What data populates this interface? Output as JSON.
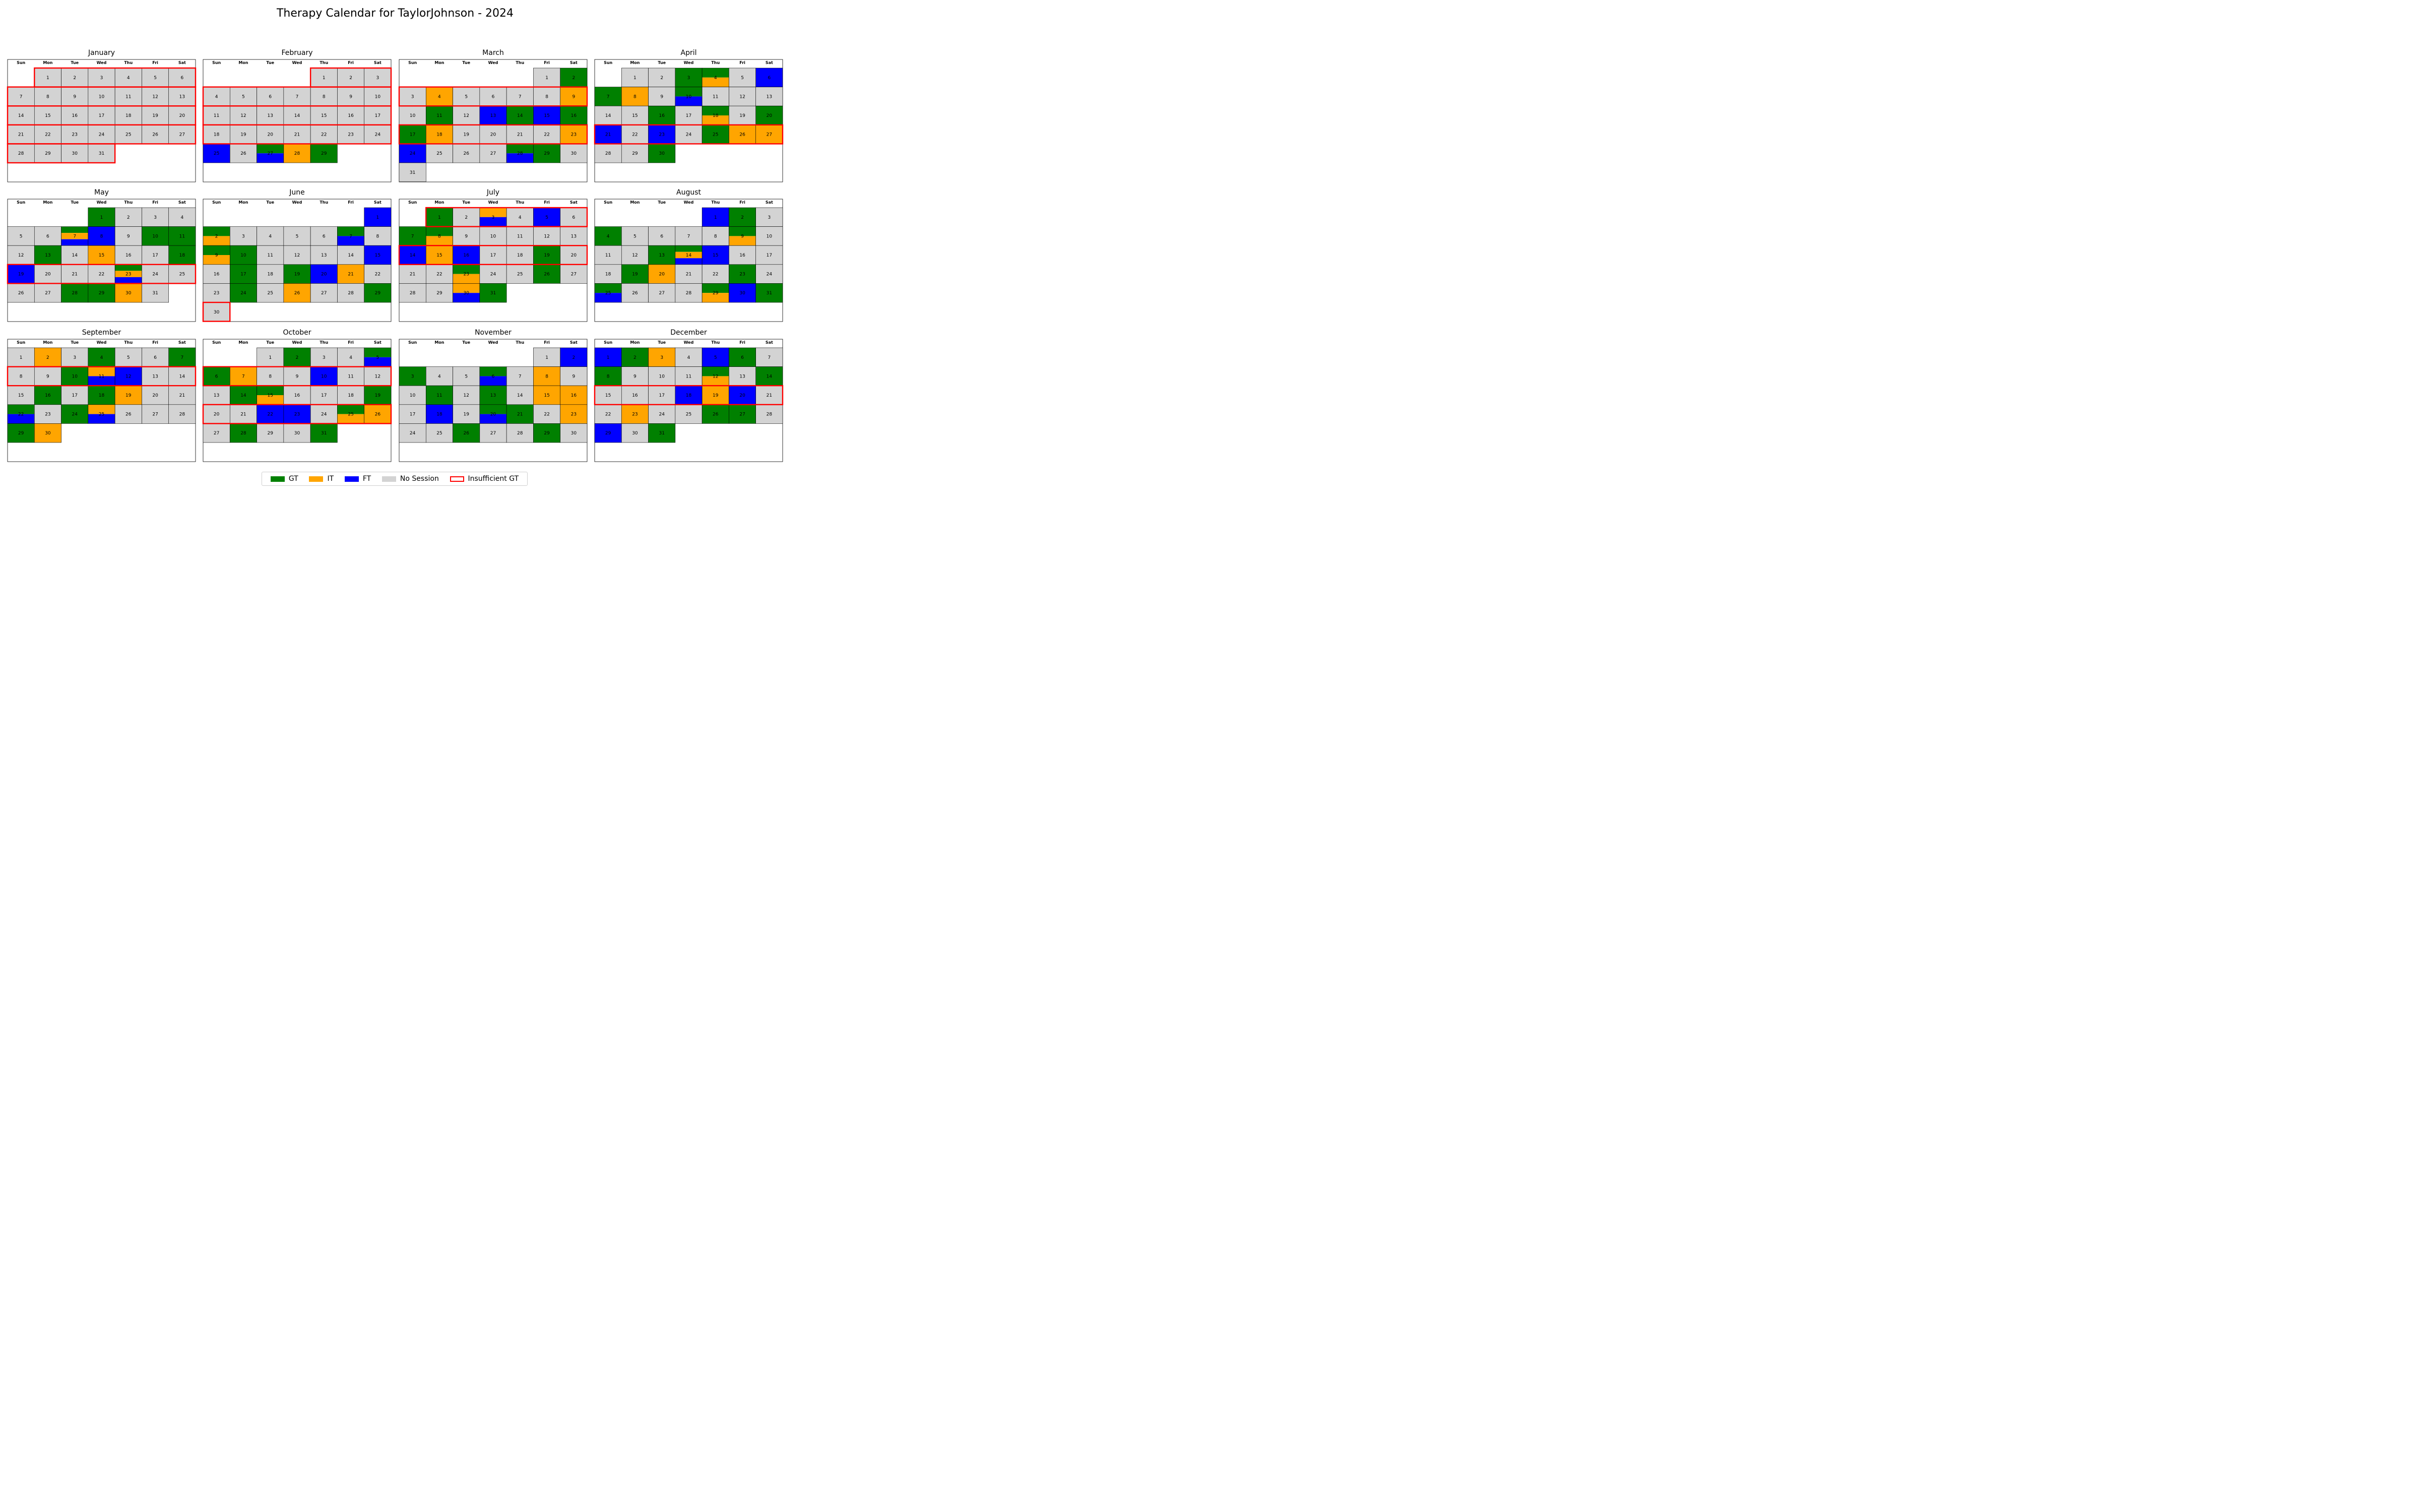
{
  "title": "Therapy Calendar for TaylorJohnson - 2024",
  "weekday_labels": [
    "Sun",
    "Mon",
    "Tue",
    "Wed",
    "Thu",
    "Fri",
    "Sat"
  ],
  "colors": {
    "GT": "#008000",
    "IT": "#FFA500",
    "FT": "#0000FF",
    "none": "#D3D3D3",
    "insufficient": "#FF0000"
  },
  "legend": [
    {
      "key": "GT",
      "label": "GT"
    },
    {
      "key": "IT",
      "label": "IT"
    },
    {
      "key": "FT",
      "label": "FT"
    },
    {
      "key": "none",
      "label": "No Session"
    },
    {
      "key": "insufficient",
      "label": "Insufficient GT"
    }
  ],
  "chart_data": {
    "type": "heatmap",
    "year": 2024,
    "months": [
      {
        "name": "January",
        "first_weekday": 1,
        "days": 31,
        "sessions": {},
        "insufficient_weeks": [
          0,
          1,
          2,
          3,
          4
        ]
      },
      {
        "name": "February",
        "first_weekday": 4,
        "days": 29,
        "sessions": {
          "25": [
            "FT"
          ],
          "27": [
            "GT",
            "FT"
          ],
          "28": [
            "IT"
          ],
          "29": [
            "GT"
          ]
        },
        "insufficient_weeks": [
          0,
          1,
          2,
          3
        ]
      },
      {
        "name": "March",
        "first_weekday": 5,
        "days": 31,
        "sessions": {
          "2": [
            "GT"
          ],
          "4": [
            "IT"
          ],
          "9": [
            "IT"
          ],
          "11": [
            "GT"
          ],
          "13": [
            "FT"
          ],
          "14": [
            "GT"
          ],
          "15": [
            "FT"
          ],
          "16": [
            "GT"
          ],
          "17": [
            "GT"
          ],
          "18": [
            "IT"
          ],
          "23": [
            "IT"
          ],
          "24": [
            "FT"
          ],
          "28": [
            "GT",
            "FT"
          ],
          "29": [
            "GT"
          ]
        },
        "insufficient_weeks": [
          1,
          3
        ]
      },
      {
        "name": "April",
        "first_weekday": 1,
        "days": 30,
        "sessions": {
          "3": [
            "GT"
          ],
          "4": [
            "GT",
            "IT"
          ],
          "6": [
            "FT"
          ],
          "7": [
            "GT"
          ],
          "8": [
            "IT"
          ],
          "10": [
            "GT",
            "FT"
          ],
          "16": [
            "GT"
          ],
          "18": [
            "GT",
            "IT"
          ],
          "20": [
            "GT"
          ],
          "21": [
            "FT"
          ],
          "23": [
            "FT"
          ],
          "25": [
            "GT"
          ],
          "26": [
            "IT"
          ],
          "27": [
            "IT"
          ],
          "30": [
            "GT"
          ]
        },
        "insufficient_weeks": [
          3
        ]
      },
      {
        "name": "May",
        "first_weekday": 3,
        "days": 31,
        "sessions": {
          "1": [
            "GT"
          ],
          "7": [
            "GT",
            "IT",
            "FT"
          ],
          "8": [
            "FT"
          ],
          "10": [
            "GT"
          ],
          "11": [
            "GT"
          ],
          "13": [
            "GT"
          ],
          "15": [
            "IT"
          ],
          "18": [
            "GT"
          ],
          "19": [
            "FT"
          ],
          "23": [
            "GT",
            "IT",
            "FT"
          ],
          "28": [
            "GT"
          ],
          "29": [
            "GT"
          ],
          "30": [
            "IT"
          ]
        },
        "insufficient_weeks": [
          3
        ]
      },
      {
        "name": "June",
        "first_weekday": 6,
        "days": 30,
        "sessions": {
          "1": [
            "FT"
          ],
          "2": [
            "GT",
            "IT"
          ],
          "7": [
            "GT",
            "FT"
          ],
          "9": [
            "GT",
            "IT"
          ],
          "10": [
            "GT"
          ],
          "15": [
            "FT"
          ],
          "17": [
            "GT"
          ],
          "19": [
            "GT"
          ],
          "20": [
            "FT"
          ],
          "21": [
            "IT"
          ],
          "24": [
            "GT"
          ],
          "26": [
            "IT"
          ],
          "29": [
            "GT"
          ]
        },
        "insufficient_weeks": [
          5
        ]
      },
      {
        "name": "July",
        "first_weekday": 1,
        "days": 31,
        "sessions": {
          "1": [
            "GT"
          ],
          "3": [
            "IT",
            "FT"
          ],
          "5": [
            "FT"
          ],
          "7": [
            "GT"
          ],
          "8": [
            "GT",
            "IT"
          ],
          "14": [
            "FT"
          ],
          "15": [
            "IT"
          ],
          "16": [
            "FT"
          ],
          "19": [
            "GT"
          ],
          "23": [
            "GT",
            "IT"
          ],
          "26": [
            "GT"
          ],
          "30": [
            "IT",
            "FT"
          ],
          "31": [
            "GT"
          ]
        },
        "insufficient_weeks": [
          0,
          2
        ]
      },
      {
        "name": "August",
        "first_weekday": 4,
        "days": 31,
        "sessions": {
          "1": [
            "FT"
          ],
          "2": [
            "GT"
          ],
          "4": [
            "GT"
          ],
          "9": [
            "GT",
            "IT"
          ],
          "13": [
            "GT"
          ],
          "14": [
            "GT",
            "IT",
            "FT"
          ],
          "15": [
            "FT"
          ],
          "19": [
            "GT"
          ],
          "20": [
            "IT"
          ],
          "23": [
            "GT"
          ],
          "25": [
            "GT",
            "FT"
          ],
          "29": [
            "GT",
            "IT"
          ],
          "30": [
            "FT"
          ],
          "31": [
            "GT"
          ]
        },
        "insufficient_weeks": []
      },
      {
        "name": "September",
        "first_weekday": 0,
        "days": 30,
        "sessions": {
          "2": [
            "IT"
          ],
          "4": [
            "GT"
          ],
          "7": [
            "GT"
          ],
          "10": [
            "GT"
          ],
          "11": [
            "IT",
            "FT"
          ],
          "12": [
            "FT"
          ],
          "16": [
            "GT"
          ],
          "18": [
            "GT"
          ],
          "19": [
            "IT"
          ],
          "22": [
            "GT",
            "FT"
          ],
          "24": [
            "GT"
          ],
          "25": [
            "IT",
            "FT"
          ],
          "29": [
            "GT"
          ],
          "30": [
            "IT"
          ]
        },
        "insufficient_weeks": [
          1
        ]
      },
      {
        "name": "October",
        "first_weekday": 2,
        "days": 31,
        "sessions": {
          "2": [
            "GT"
          ],
          "5": [
            "GT",
            "FT"
          ],
          "6": [
            "GT"
          ],
          "7": [
            "IT"
          ],
          "10": [
            "FT"
          ],
          "14": [
            "GT"
          ],
          "15": [
            "GT",
            "IT"
          ],
          "19": [
            "GT"
          ],
          "22": [
            "FT"
          ],
          "23": [
            "FT"
          ],
          "25": [
            "GT",
            "IT"
          ],
          "26": [
            "IT"
          ],
          "28": [
            "GT"
          ],
          "31": [
            "GT"
          ]
        },
        "insufficient_weeks": [
          1,
          3
        ]
      },
      {
        "name": "November",
        "first_weekday": 5,
        "days": 30,
        "sessions": {
          "2": [
            "FT"
          ],
          "3": [
            "GT"
          ],
          "6": [
            "GT",
            "FT"
          ],
          "8": [
            "IT"
          ],
          "11": [
            "GT"
          ],
          "13": [
            "GT"
          ],
          "15": [
            "IT"
          ],
          "16": [
            "IT"
          ],
          "18": [
            "FT"
          ],
          "20": [
            "GT",
            "FT"
          ],
          "21": [
            "GT"
          ],
          "23": [
            "IT"
          ],
          "26": [
            "GT"
          ],
          "29": [
            "GT"
          ]
        },
        "insufficient_weeks": []
      },
      {
        "name": "December",
        "first_weekday": 0,
        "days": 31,
        "sessions": {
          "1": [
            "FT"
          ],
          "2": [
            "GT"
          ],
          "3": [
            "IT"
          ],
          "5": [
            "FT"
          ],
          "6": [
            "GT"
          ],
          "8": [
            "GT"
          ],
          "12": [
            "GT",
            "IT"
          ],
          "14": [
            "GT"
          ],
          "18": [
            "FT"
          ],
          "19": [
            "IT"
          ],
          "20": [
            "FT"
          ],
          "23": [
            "IT"
          ],
          "26": [
            "GT"
          ],
          "27": [
            "GT"
          ],
          "29": [
            "FT"
          ],
          "31": [
            "GT"
          ]
        },
        "insufficient_weeks": [
          2,
          5
        ]
      }
    ]
  }
}
